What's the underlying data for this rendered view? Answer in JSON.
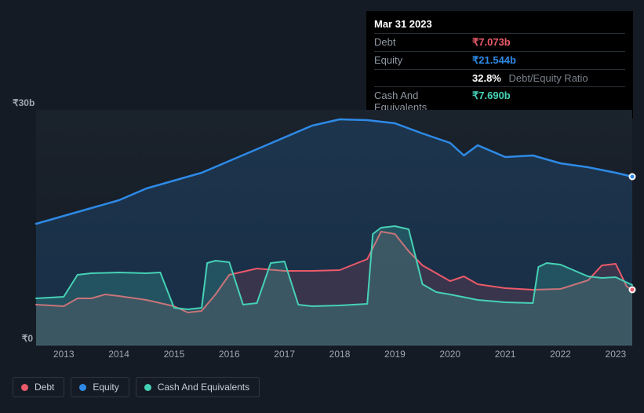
{
  "tooltip": {
    "date": "Mar 31 2023",
    "rows": [
      {
        "label": "Debt",
        "value": "₹7.073b",
        "color": "#eb5a6a"
      },
      {
        "label": "Equity",
        "value": "₹21.544b",
        "color": "#2e8ae6"
      },
      {
        "label": "",
        "value": "32.8%",
        "sub": "Debt/Equity Ratio",
        "color": "#ffffff"
      },
      {
        "label": "Cash And Equivalents",
        "value": "₹7.690b",
        "color": "#46d1b6"
      }
    ]
  },
  "chart": {
    "type": "area",
    "background_color": "#151b24",
    "plot_bg_top": "#1a222c",
    "plot_bg_bottom": "#151b24",
    "y_axis": {
      "min": 0,
      "max": 30,
      "ticks": [
        {
          "v": 0,
          "label": "₹0"
        },
        {
          "v": 30,
          "label": "₹30b"
        }
      ],
      "label_color": "#9ea7b3",
      "label_fontsize": 12
    },
    "x_axis": {
      "start": 2012.5,
      "end": 2023.3,
      "ticks": [
        2013,
        2014,
        2015,
        2016,
        2017,
        2018,
        2019,
        2020,
        2021,
        2022,
        2023
      ],
      "label_color": "#9ea7b3",
      "label_fontsize": 12
    },
    "series": [
      {
        "name": "Equity",
        "color": "#2e8ae6",
        "fill": "rgba(46,138,230,0.18)",
        "line_width": 2.5,
        "points": [
          [
            2012.5,
            15.5
          ],
          [
            2013,
            16.5
          ],
          [
            2013.5,
            17.5
          ],
          [
            2014,
            18.5
          ],
          [
            2014.5,
            20
          ],
          [
            2015,
            21
          ],
          [
            2015.5,
            22
          ],
          [
            2016,
            23.5
          ],
          [
            2016.5,
            25
          ],
          [
            2017,
            26.5
          ],
          [
            2017.5,
            28
          ],
          [
            2018,
            28.8
          ],
          [
            2018.5,
            28.7
          ],
          [
            2019,
            28.3
          ],
          [
            2019.5,
            27
          ],
          [
            2020,
            25.8
          ],
          [
            2020.25,
            24.2
          ],
          [
            2020.5,
            25.5
          ],
          [
            2021,
            24
          ],
          [
            2021.5,
            24.2
          ],
          [
            2022,
            23.2
          ],
          [
            2022.5,
            22.7
          ],
          [
            2023,
            22
          ],
          [
            2023.3,
            21.5
          ]
        ]
      },
      {
        "name": "Debt",
        "color": "#eb5a6a",
        "fill": "rgba(235,90,106,0.15)",
        "line_width": 2,
        "points": [
          [
            2012.5,
            5.2
          ],
          [
            2013,
            5
          ],
          [
            2013.25,
            6
          ],
          [
            2013.5,
            6
          ],
          [
            2013.75,
            6.5
          ],
          [
            2014,
            6.3
          ],
          [
            2014.5,
            5.8
          ],
          [
            2015,
            5
          ],
          [
            2015.25,
            4.2
          ],
          [
            2015.5,
            4.4
          ],
          [
            2015.75,
            6.5
          ],
          [
            2016,
            9
          ],
          [
            2016.5,
            9.8
          ],
          [
            2017,
            9.5
          ],
          [
            2017.5,
            9.5
          ],
          [
            2018,
            9.6
          ],
          [
            2018.5,
            11
          ],
          [
            2018.75,
            14.5
          ],
          [
            2019,
            14.2
          ],
          [
            2019.25,
            12
          ],
          [
            2019.5,
            10.2
          ],
          [
            2020,
            8.2
          ],
          [
            2020.25,
            8.8
          ],
          [
            2020.5,
            7.8
          ],
          [
            2021,
            7.3
          ],
          [
            2021.5,
            7.1
          ],
          [
            2022,
            7.2
          ],
          [
            2022.5,
            8.3
          ],
          [
            2022.75,
            10.2
          ],
          [
            2023,
            10.4
          ],
          [
            2023.2,
            7.5
          ],
          [
            2023.3,
            7.1
          ]
        ]
      },
      {
        "name": "Cash And Equivalents",
        "color": "#46d1b6",
        "fill": "rgba(70,209,182,0.22)",
        "line_width": 2,
        "points": [
          [
            2012.5,
            6
          ],
          [
            2013,
            6.2
          ],
          [
            2013.25,
            9
          ],
          [
            2013.5,
            9.2
          ],
          [
            2014,
            9.3
          ],
          [
            2014.5,
            9.2
          ],
          [
            2014.75,
            9.3
          ],
          [
            2015,
            4.8
          ],
          [
            2015.25,
            4.6
          ],
          [
            2015.5,
            4.8
          ],
          [
            2015.6,
            10.5
          ],
          [
            2015.75,
            10.8
          ],
          [
            2016,
            10.6
          ],
          [
            2016.25,
            5.2
          ],
          [
            2016.5,
            5.4
          ],
          [
            2016.75,
            10.5
          ],
          [
            2017,
            10.7
          ],
          [
            2017.25,
            5.2
          ],
          [
            2017.5,
            5
          ],
          [
            2018,
            5.1
          ],
          [
            2018.5,
            5.3
          ],
          [
            2018.6,
            14.2
          ],
          [
            2018.75,
            15
          ],
          [
            2019,
            15.2
          ],
          [
            2019.25,
            14.8
          ],
          [
            2019.5,
            7.8
          ],
          [
            2019.75,
            6.8
          ],
          [
            2020,
            6.5
          ],
          [
            2020.5,
            5.8
          ],
          [
            2021,
            5.5
          ],
          [
            2021.5,
            5.4
          ],
          [
            2021.6,
            10
          ],
          [
            2021.75,
            10.5
          ],
          [
            2022,
            10.3
          ],
          [
            2022.5,
            8.8
          ],
          [
            2022.75,
            8.6
          ],
          [
            2023,
            8.7
          ],
          [
            2023.3,
            7.7
          ]
        ]
      }
    ],
    "end_markers": [
      {
        "color": "#2e8ae6",
        "x": 2023.3,
        "y": 21.5
      },
      {
        "color": "#eb5a6a",
        "x": 2023.3,
        "y": 7.1
      }
    ]
  },
  "legend": {
    "border_color": "#2e3640",
    "text_color": "#c7ced8",
    "fontsize": 12,
    "items": [
      {
        "label": "Debt",
        "color": "#eb5a6a"
      },
      {
        "label": "Equity",
        "color": "#2e8ae6"
      },
      {
        "label": "Cash And Equivalents",
        "color": "#46d1b6"
      }
    ]
  }
}
